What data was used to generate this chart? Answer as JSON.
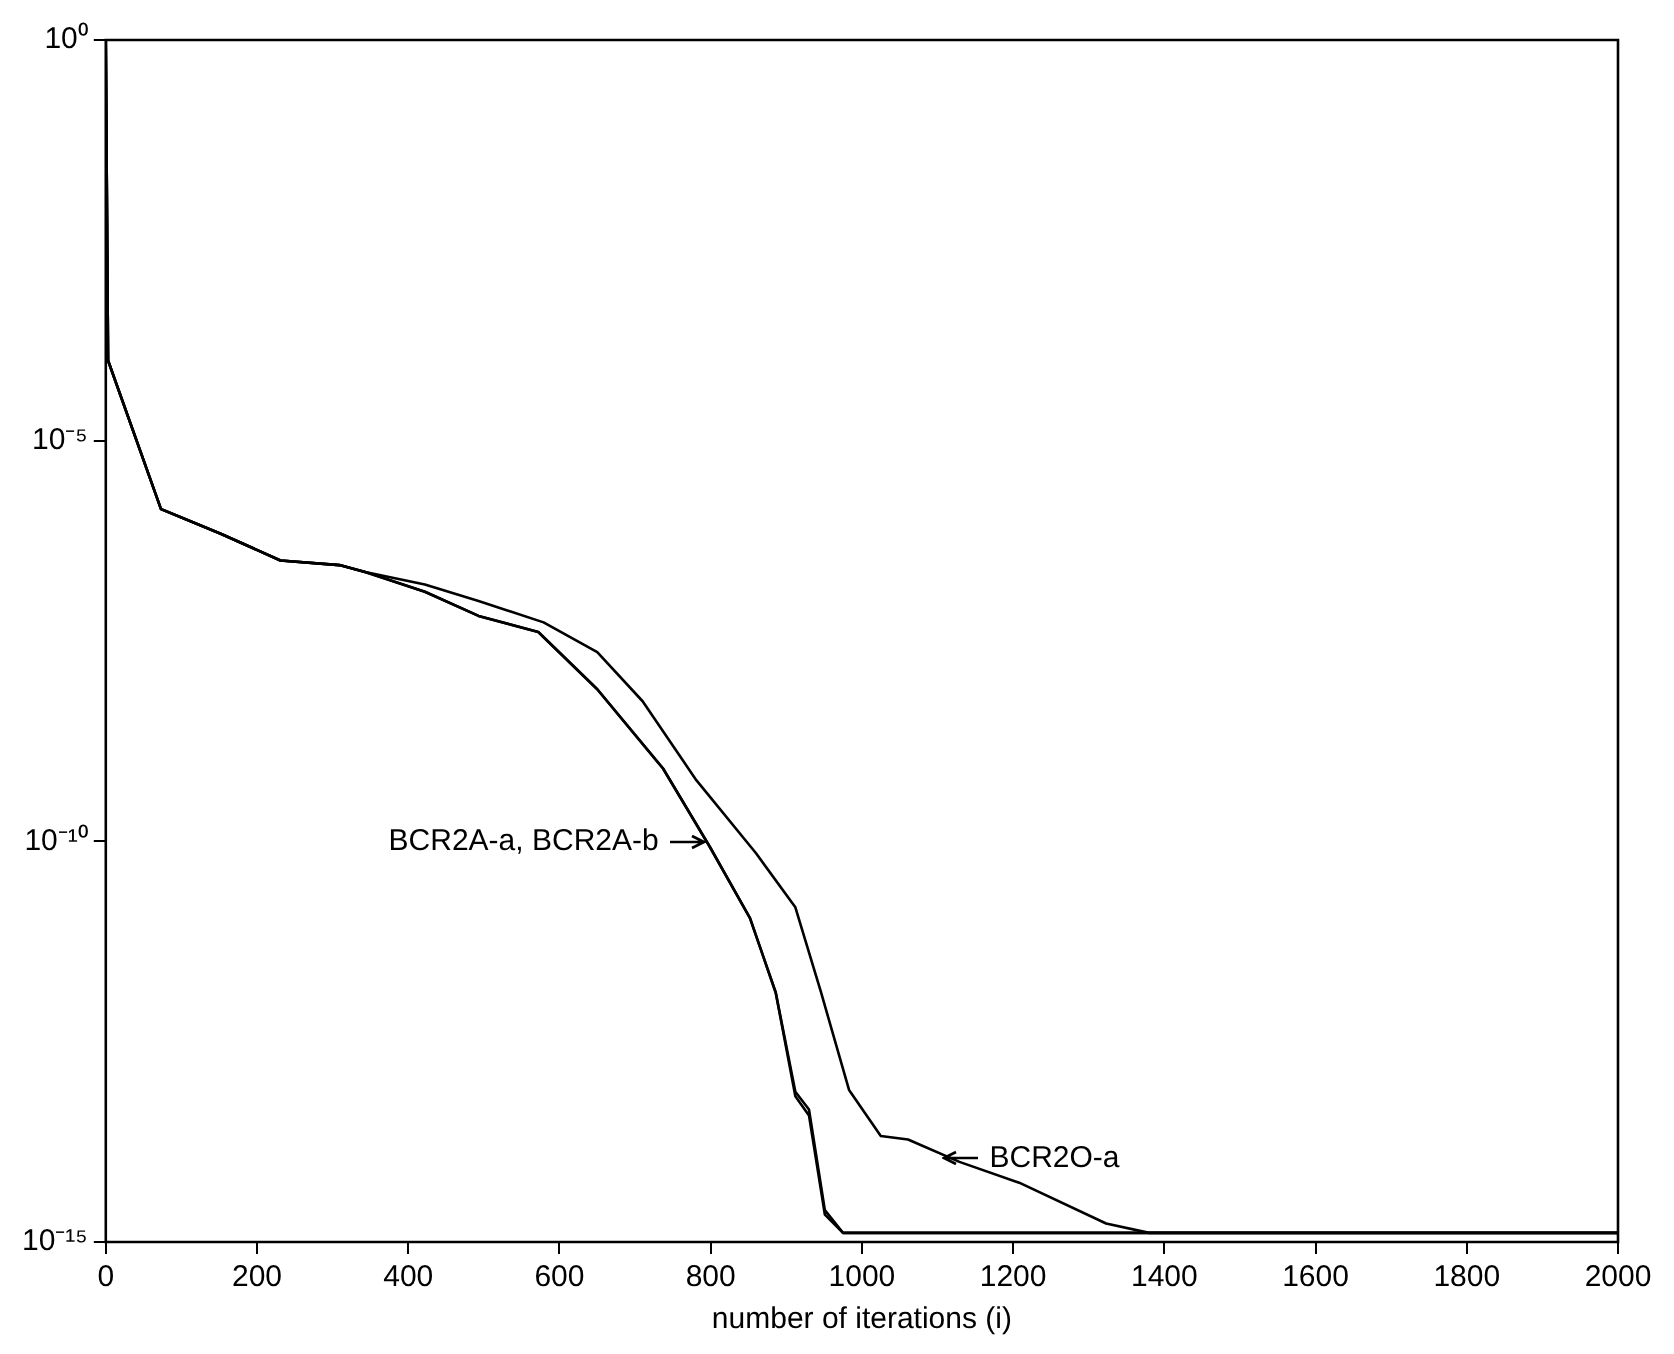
{
  "chart_data": {
    "type": "line",
    "xlabel": "number of iterations (i)",
    "xlim": [
      0,
      2000
    ],
    "xticks": [
      0,
      200,
      400,
      600,
      800,
      1000,
      1200,
      1400,
      1600,
      1800,
      2000
    ],
    "ylim": [
      1e-15,
      1
    ],
    "yticks": [
      {
        "value": 1,
        "label": "10⁰"
      },
      {
        "value": 1e-05,
        "label": "10⁻⁵"
      },
      {
        "value": 1e-10,
        "label": "10⁻¹⁰"
      },
      {
        "value": 1e-15,
        "label": "10⁻¹⁵"
      }
    ],
    "log": "y",
    "grid": false,
    "legend": false,
    "marker": "none",
    "line_style": "solid",
    "series": [
      {
        "color": "#000000",
        "x": [
          0,
          3,
          73,
          152,
          231,
          309,
          343,
          422,
          493,
          572,
          650,
          737,
          799,
          852,
          886,
          912,
          930,
          951,
          975,
          2000
        ],
        "values": [
          1,
          0.0001,
          1.4e-06,
          6.9e-07,
          3.2e-07,
          2.8e-07,
          2.3e-07,
          1.3e-07,
          6.5e-08,
          4.1e-08,
          7.9e-09,
          8.1e-10,
          8.5e-11,
          1.1e-11,
          1.3e-12,
          6.6e-14,
          3.8e-14,
          2.2e-15,
          1.3e-15,
          1.3e-15
        ]
      },
      {
        "color": "#000000",
        "x": [
          0,
          3,
          73,
          152,
          231,
          309,
          343,
          422,
          493,
          572,
          650,
          737,
          799,
          852,
          886,
          912,
          930,
          951,
          975,
          2000
        ],
        "values": [
          1,
          0.0001,
          1.4e-06,
          6.9e-07,
          3.2e-07,
          2.8e-07,
          2.3e-07,
          1.3e-07,
          6.5e-08,
          4.1e-08,
          7.9e-09,
          8.1e-10,
          8.5e-11,
          1.1e-11,
          1.3e-12,
          7.5e-14,
          4.5e-14,
          2.5e-15,
          1.3e-15,
          1.3e-15
        ]
      },
      {
        "color": "#000000",
        "x": [
          0,
          3,
          73,
          152,
          231,
          309,
          343,
          422,
          493,
          579,
          650,
          710,
          781,
          860,
          912,
          946,
          983,
          1025,
          1061,
          1129,
          1208,
          1323,
          1380,
          2000
        ],
        "values": [
          1,
          0.0001,
          1.4e-06,
          6.9e-07,
          3.2e-07,
          2.8e-07,
          2.3e-07,
          1.6e-07,
          1e-07,
          5.4e-08,
          2.3e-08,
          5.6e-09,
          5.8e-10,
          7.1e-11,
          1.5e-11,
          1.3e-12,
          7.9e-14,
          2.1e-14,
          1.9e-14,
          1e-14,
          5.5e-15,
          1.7e-15,
          1.3e-15,
          1.3e-15
        ]
      }
    ],
    "annotations": [
      {
        "text": "BCR2A-a, BCR2A-b",
        "x": 800,
        "y": 1e-10
      },
      {
        "text": "BCR2O-a",
        "x": 1100,
        "y": 1.1e-14
      }
    ]
  }
}
